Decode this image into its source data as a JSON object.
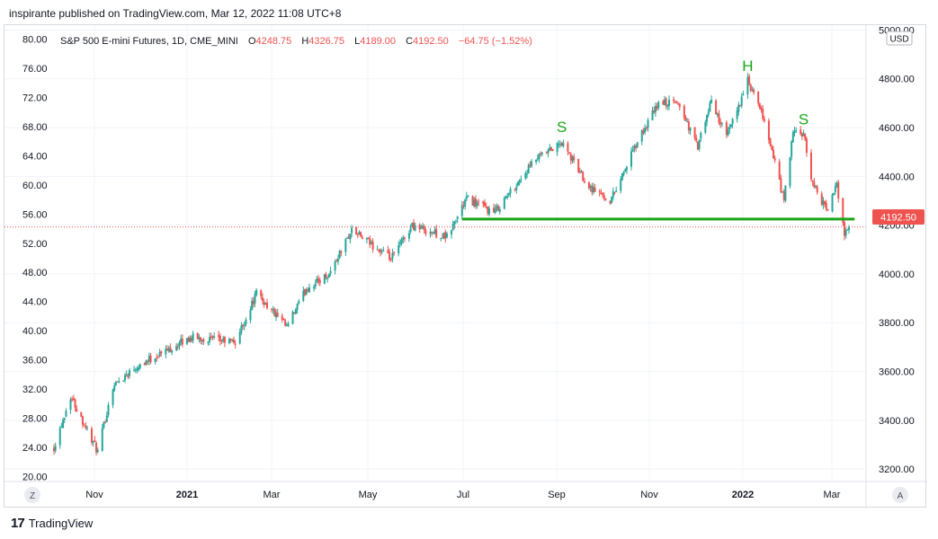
{
  "header": {
    "published": "inspirante published on TradingView.com, Mar 12, 2022 11:08 UTC+8"
  },
  "footer": {
    "logo": "17",
    "brand": "TradingView"
  },
  "symbol": {
    "name": "S&P 500 E-mini Futures, 1D, CME_MINI",
    "o_label": "O",
    "o": "4248.75",
    "h_label": "H",
    "h": "4326.75",
    "l_label": "L",
    "l": "4189.00",
    "c_label": "C",
    "c": "4192.50",
    "change": "−64.75 (−1.52%)"
  },
  "buttons": {
    "currency": "USD",
    "zoom": "Z",
    "auto": "A"
  },
  "price_badge": "4192.50",
  "colors": {
    "up": "#26a69a",
    "down": "#ef5350",
    "neckline": "#1aa51a",
    "pattern_label": "#1aa51a",
    "last_price": "#ef5350"
  },
  "chart_data": {
    "type": "candlestick",
    "x_ticks": [
      "Nov",
      "2021",
      "Mar",
      "May",
      "Jul",
      "Sep",
      "Nov",
      "2022",
      "Mar"
    ],
    "right_axis": {
      "ticks": [
        "5000.00",
        "4800.00",
        "4600.00",
        "4400.00",
        "4200.00",
        "4000.00",
        "3800.00",
        "3600.00",
        "3400.00",
        "3200.00"
      ],
      "range": [
        3160,
        5020
      ]
    },
    "left_axis": {
      "ticks": [
        "80.00",
        "76.00",
        "72.00",
        "68.00",
        "64.00",
        "60.00",
        "56.00",
        "52.00",
        "48.00",
        "44.00",
        "40.00",
        "36.00",
        "32.00",
        "28.00",
        "24.00",
        "20.00"
      ],
      "range": [
        19.7,
        81.9
      ]
    },
    "last_price": 4192.5,
    "neckline": {
      "value": 4225,
      "from": "2021-06-28",
      "to": "2022-03-10"
    },
    "annotations": [
      {
        "text": "S",
        "date": "2021-09-02",
        "value": 4560
      },
      {
        "text": "H",
        "date": "2022-01-03",
        "value": 4810
      },
      {
        "text": "S",
        "date": "2022-02-09",
        "value": 4590
      }
    ],
    "anchors": [
      [
        "2020-10-01",
        3290
      ],
      [
        "2020-10-12",
        3500
      ],
      [
        "2020-10-30",
        3270
      ],
      [
        "2020-11-09",
        3540
      ],
      [
        "2020-11-24",
        3620
      ],
      [
        "2020-12-31",
        3740
      ],
      [
        "2021-01-29",
        3720
      ],
      [
        "2021-02-12",
        3920
      ],
      [
        "2021-03-04",
        3780
      ],
      [
        "2021-03-17",
        3940
      ],
      [
        "2021-04-01",
        4000
      ],
      [
        "2021-04-16",
        4180
      ],
      [
        "2021-05-12",
        4060
      ],
      [
        "2021-05-26",
        4200
      ],
      [
        "2021-06-18",
        4150
      ],
      [
        "2021-07-01",
        4310
      ],
      [
        "2021-07-19",
        4250
      ],
      [
        "2021-08-16",
        4470
      ],
      [
        "2021-09-02",
        4535
      ],
      [
        "2021-09-20",
        4360
      ],
      [
        "2021-10-04",
        4300
      ],
      [
        "2021-10-22",
        4540
      ],
      [
        "2021-11-05",
        4700
      ],
      [
        "2021-11-18",
        4700
      ],
      [
        "2021-12-01",
        4520
      ],
      [
        "2021-12-10",
        4710
      ],
      [
        "2021-12-20",
        4560
      ],
      [
        "2022-01-03",
        4790
      ],
      [
        "2022-01-14",
        4630
      ],
      [
        "2022-01-27",
        4300
      ],
      [
        "2022-02-02",
        4580
      ],
      [
        "2022-02-09",
        4570
      ],
      [
        "2022-02-14",
        4390
      ],
      [
        "2022-02-24",
        4260
      ],
      [
        "2022-03-03",
        4360
      ],
      [
        "2022-03-08",
        4170
      ],
      [
        "2022-03-11",
        4192.5
      ]
    ]
  }
}
